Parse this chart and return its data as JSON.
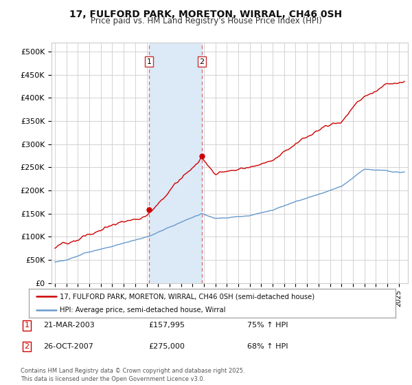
{
  "title_line1": "17, FULFORD PARK, MORETON, WIRRAL, CH46 0SH",
  "title_line2": "Price paid vs. HM Land Registry's House Price Index (HPI)",
  "ylabel_ticks": [
    "£0",
    "£50K",
    "£100K",
    "£150K",
    "£200K",
    "£250K",
    "£300K",
    "£350K",
    "£400K",
    "£450K",
    "£500K"
  ],
  "ytick_vals": [
    0,
    50000,
    100000,
    150000,
    200000,
    250000,
    300000,
    350000,
    400000,
    450000,
    500000
  ],
  "ylim": [
    0,
    520000
  ],
  "xlim_start": 1994.7,
  "xlim_end": 2025.8,
  "sale1_x": 2003.22,
  "sale1_y": 157995,
  "sale1_label": "1",
  "sale2_x": 2007.82,
  "sale2_y": 275000,
  "sale2_label": "2",
  "highlight_color": "#dce9f7",
  "vline_color": "#cc3333",
  "hpi_line_color": "#6699cc",
  "price_line_color": "#cc0000",
  "background_color": "#ffffff",
  "grid_color": "#cccccc",
  "legend_line1": "17, FULFORD PARK, MORETON, WIRRAL, CH46 0SH (semi-detached house)",
  "legend_line2": "HPI: Average price, semi-detached house, Wirral",
  "annot1_date": "21-MAR-2003",
  "annot1_price": "£157,995",
  "annot1_hpi": "75% ↑ HPI",
  "annot2_date": "26-OCT-2007",
  "annot2_price": "£275,000",
  "annot2_hpi": "68% ↑ HPI",
  "footer": "Contains HM Land Registry data © Crown copyright and database right 2025.\nThis data is licensed under the Open Government Licence v3.0."
}
